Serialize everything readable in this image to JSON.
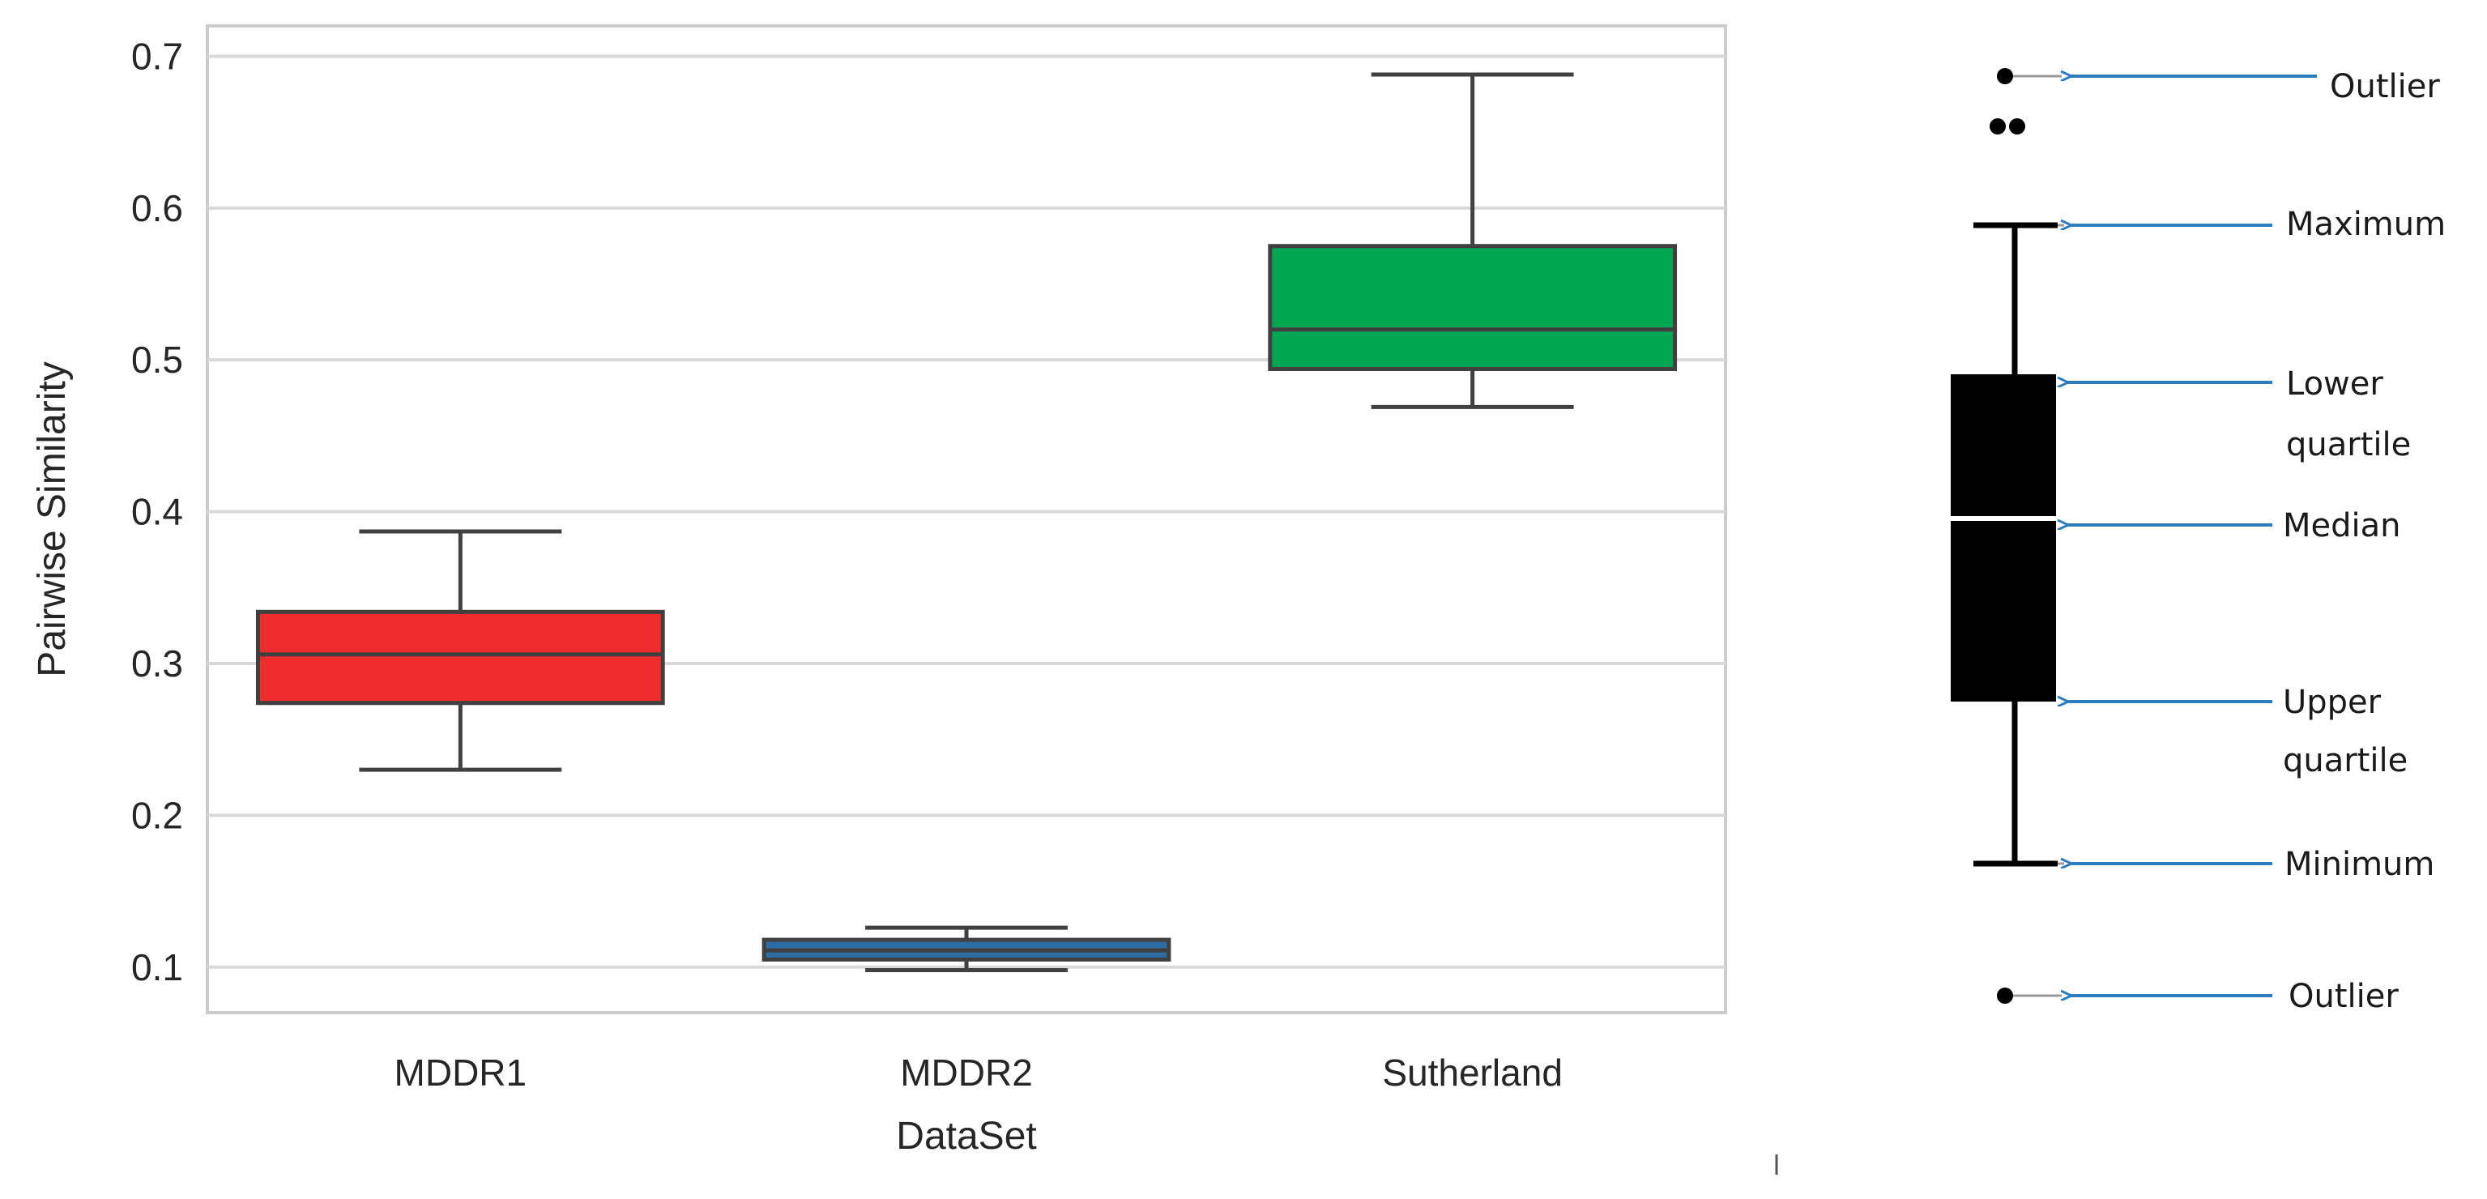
{
  "chart_data": {
    "type": "box",
    "xlabel": "DataSet",
    "ylabel": "Pairwise Similarity",
    "ylim": [
      0.07,
      0.72
    ],
    "yticks": [
      0.1,
      0.2,
      0.3,
      0.4,
      0.5,
      0.6,
      0.7
    ],
    "ytick_labels": [
      "0.1",
      "0.2",
      "0.3",
      "0.4",
      "0.5",
      "0.6",
      "0.7"
    ],
    "grid": "horizontal",
    "categories": [
      "MDDR1",
      "MDDR2",
      "Sutherland"
    ],
    "boxes": [
      {
        "category": "MDDR1",
        "whisker_low": 0.23,
        "q1": 0.274,
        "median": 0.306,
        "q3": 0.334,
        "whisker_high": 0.387,
        "color": "#ee2c2c"
      },
      {
        "category": "MDDR2",
        "whisker_low": 0.098,
        "q1": 0.105,
        "median": 0.111,
        "q3": 0.118,
        "whisker_high": 0.126,
        "color": "#2e6da4"
      },
      {
        "category": "Sutherland",
        "whisker_low": 0.469,
        "q1": 0.494,
        "median": 0.52,
        "q3": 0.575,
        "whisker_high": 0.688,
        "color": "#00a651"
      }
    ]
  },
  "legend_diagram": {
    "labels": {
      "outlier_top": "Outlier",
      "maximum": "Maximum",
      "lower_quartile_line1": "Lower",
      "lower_quartile_line2": "quartile",
      "median": "Median",
      "upper_quartile_line1": "Upper",
      "upper_quartile_line2": "quartile",
      "minimum": "Minimum",
      "outlier_bottom": "Outlier"
    },
    "box_color": "#000000",
    "arrow_color": "#2e7cc0"
  }
}
